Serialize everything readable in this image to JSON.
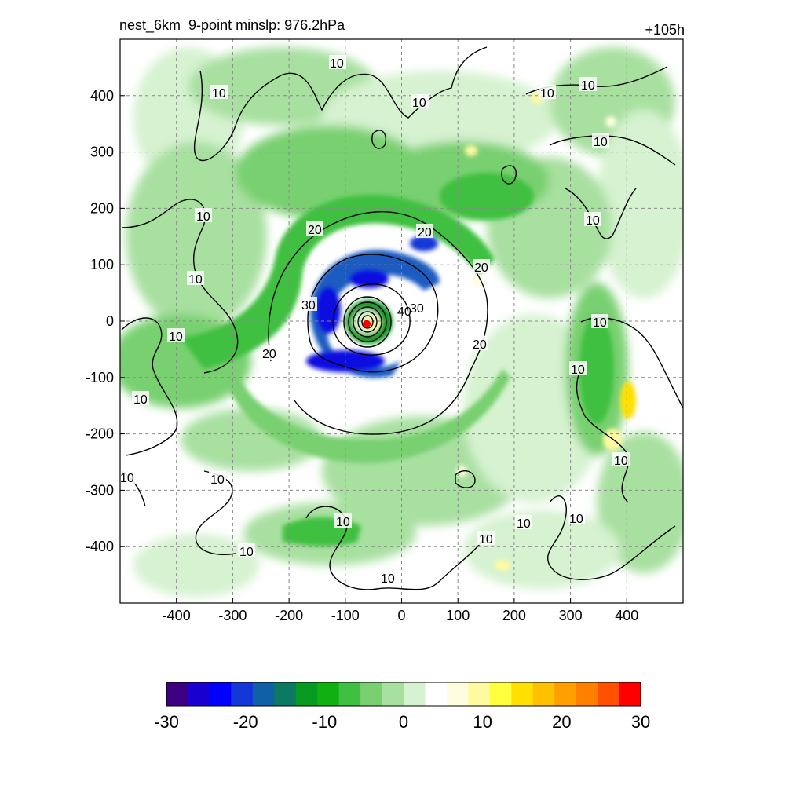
{
  "header": {
    "left_title": "nest_6km  9-point minslp: 976.2hPa",
    "right_title": "+105h"
  },
  "chart_data": {
    "type": "heatmap",
    "title": "nest_6km  9-point minslp: 976.2hPa",
    "forecast_hour_label": "+105h",
    "xlabel": "",
    "ylabel": "",
    "xlim": [
      -500,
      500
    ],
    "ylim": [
      -500,
      500
    ],
    "x_ticks": [
      -400,
      -300,
      -200,
      -100,
      0,
      100,
      200,
      300,
      400
    ],
    "y_ticks": [
      400,
      300,
      200,
      100,
      0,
      -100,
      -200,
      -300,
      -400
    ],
    "grid": true,
    "storm_center": {
      "x": -62,
      "y": -5
    },
    "shading": {
      "palette": [
        "#3d0080",
        "#1a00d0",
        "#0000ff",
        "#1438d8",
        "#1060a8",
        "#0c7a60",
        "#089a20",
        "#10b010",
        "#40c040",
        "#78d070",
        "#a8e0a0",
        "#d6f2d0",
        "#ffffff",
        "#fffde0",
        "#fffaa0",
        "#ffff40",
        "#ffe000",
        "#ffc000",
        "#ffa000",
        "#ff8000",
        "#ff5000",
        "#ff0000"
      ],
      "colorbar_min": -30,
      "colorbar_max": 30,
      "colorbar_ticks": [
        "-30",
        "-20",
        "-10",
        "0",
        "10",
        "20",
        "30"
      ]
    },
    "contours": [
      {
        "level": 10,
        "label": "10"
      },
      {
        "level": 20,
        "label": "20"
      },
      {
        "level": 30,
        "label": "30"
      },
      {
        "level": 40,
        "label": "40"
      }
    ]
  }
}
